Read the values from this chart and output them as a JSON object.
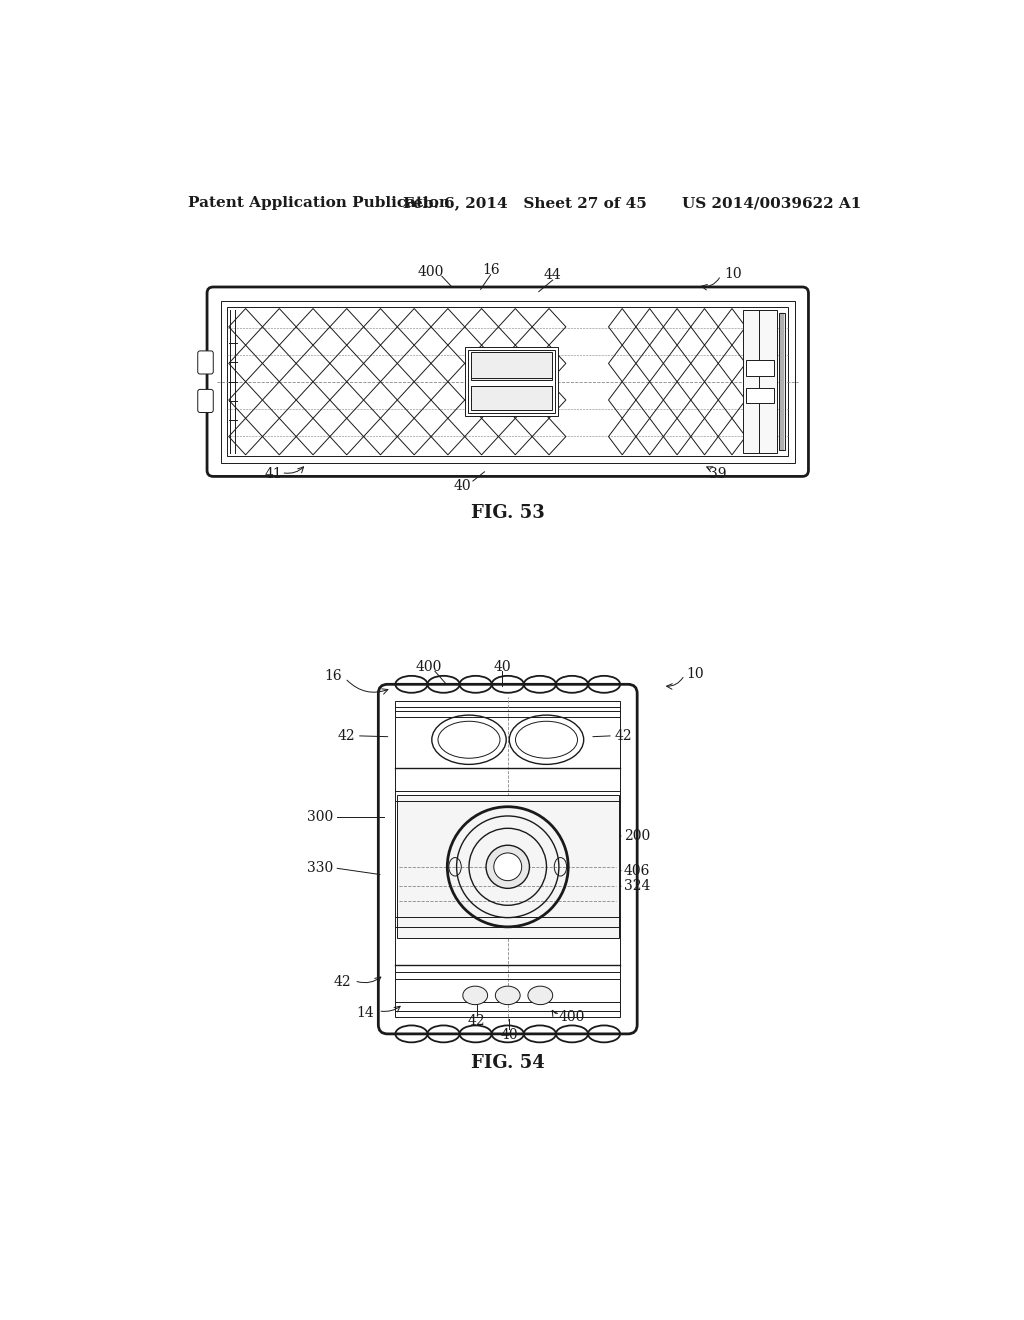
{
  "background_color": "#ffffff",
  "header_left": "Patent Application Publication",
  "header_middle": "Feb. 6, 2014   Sheet 27 of 45",
  "header_right": "US 2014/0039622 A1",
  "header_fontsize": 11,
  "fig53_label": "FIG. 53",
  "fig54_label": "FIG. 54",
  "label_fontsize": 10,
  "fig_label_fontsize": 13
}
